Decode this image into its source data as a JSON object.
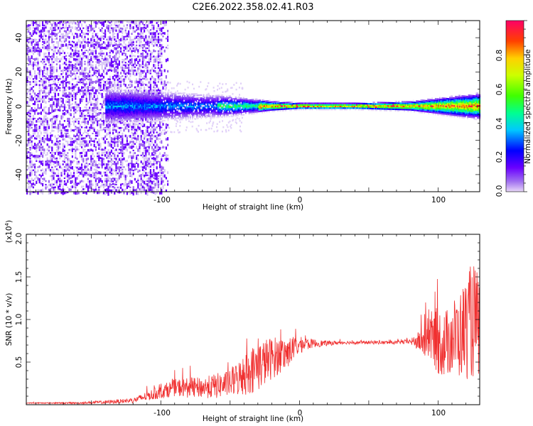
{
  "figure": {
    "title": "C2E6.2022.358.02.41.R03"
  },
  "colors": {
    "snr_line": "#f03030",
    "spec_low": "#d8c8f4",
    "spec_mid": "#8a2be2",
    "spec_dense": "#6a00ff"
  },
  "chart_data": [
    {
      "type": "heatmap",
      "title": "",
      "xlabel": "Height of straight line (km)",
      "ylabel": "Frequency (Hz)",
      "xlim": [
        -197,
        130
      ],
      "ylim": [
        -50,
        50
      ],
      "xticks": [
        -100,
        0,
        100
      ],
      "xtick_labels": [
        "-100",
        "0",
        "100"
      ],
      "yticks": [
        -40,
        -20,
        0,
        20,
        40
      ],
      "ytick_labels": [
        "-40",
        "-20",
        "0",
        "20",
        "40"
      ],
      "colorbar": {
        "label": "Normalized spectral amplitude",
        "range": [
          0,
          1
        ],
        "ticks": [
          0.0,
          0.2,
          0.4,
          0.6,
          0.8
        ],
        "tick_labels": [
          "0.0",
          "0.2",
          "0.4",
          "0.6",
          "0.8"
        ]
      },
      "features": {
        "noise_region_x": [
          -197,
          -100
        ],
        "signal_center_hz": 0,
        "band_halfwidth_hz": [
          {
            "x": -130,
            "w": 10
          },
          {
            "x": -90,
            "w": 8
          },
          {
            "x": -50,
            "w": 6
          },
          {
            "x": -20,
            "w": 3
          },
          {
            "x": 0,
            "w": 2
          },
          {
            "x": 40,
            "w": 2
          },
          {
            "x": 80,
            "w": 3
          },
          {
            "x": 110,
            "w": 6
          },
          {
            "x": 130,
            "w": 8
          }
        ]
      }
    },
    {
      "type": "line",
      "title": "",
      "xlabel": "Height of straight line (km)",
      "ylabel": "SNR (10 * v/v)",
      "y_scale_label": "(x10",
      "y_scale_exp": "4",
      "y_scale_close": ")",
      "xlim": [
        -197,
        130
      ],
      "ylim": [
        0,
        2.0
      ],
      "xticks": [
        -100,
        0,
        100
      ],
      "xtick_labels": [
        "-100",
        "0",
        "100"
      ],
      "yticks": [
        0.5,
        1.0,
        1.5,
        2.0
      ],
      "ytick_labels": [
        "0.5",
        "1.0",
        "1.5",
        "2.0"
      ],
      "series": [
        {
          "name": "SNR",
          "x": [
            -197,
            -160,
            -140,
            -120,
            -100,
            -90,
            -80,
            -70,
            -60,
            -50,
            -40,
            -30,
            -20,
            -10,
            0,
            10,
            20,
            30,
            40,
            50,
            60,
            70,
            80,
            85,
            90,
            95,
            100,
            105,
            110,
            115,
            120,
            125,
            130
          ],
          "y": [
            0.02,
            0.02,
            0.03,
            0.05,
            0.15,
            0.2,
            0.2,
            0.2,
            0.22,
            0.25,
            0.35,
            0.45,
            0.55,
            0.6,
            0.7,
            0.72,
            0.72,
            0.73,
            0.73,
            0.73,
            0.73,
            0.73,
            0.74,
            0.74,
            0.75,
            0.8,
            0.75,
            0.7,
            0.8,
            0.8,
            0.9,
            1.0,
            0.9
          ],
          "amplitude": [
            0.005,
            0.01,
            0.02,
            0.03,
            0.08,
            0.1,
            0.12,
            0.12,
            0.15,
            0.15,
            0.25,
            0.3,
            0.25,
            0.2,
            0.1,
            0.05,
            0.03,
            0.02,
            0.02,
            0.02,
            0.02,
            0.02,
            0.03,
            0.1,
            0.2,
            0.3,
            0.4,
            0.4,
            0.45,
            0.5,
            0.6,
            0.7,
            0.6
          ]
        }
      ]
    }
  ]
}
